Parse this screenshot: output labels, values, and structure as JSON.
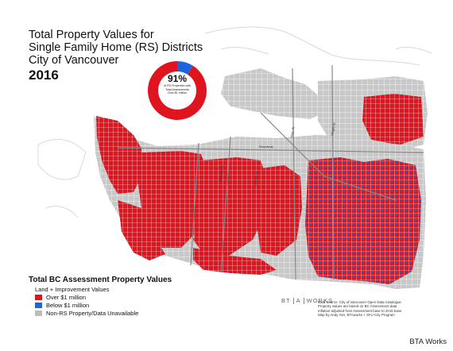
{
  "title": {
    "line1": "Total Property Values for",
    "line2": "Single Family Home (RS) Districts",
    "line3": "City of Vancouver",
    "year": "2016"
  },
  "donut": {
    "percent_label": "91%",
    "caption_line1": "of RS Properties with",
    "caption_line2": "Total Assessments",
    "caption_line3": "Over $1 million",
    "over_share": 0.91,
    "below_share": 0.09
  },
  "legend": {
    "title": "Total BC Assessment Property Values",
    "subtitle": "Land + Improvement Values",
    "items": [
      {
        "label": "Over $1 million",
        "color": "#e0141e"
      },
      {
        "label": "Below $1 million",
        "color": "#1e64dc"
      },
      {
        "label": "Non-RS Property/Data Unavailable",
        "color": "#bdbdbd"
      }
    ]
  },
  "streets": {
    "broadway": "Broadway",
    "main": "Main St",
    "knight": "Knight St",
    "granville": "Granville St",
    "cambie": "Cambie St"
  },
  "logo": {
    "part1": "BT",
    "part2": "A",
    "part3": "WORKS"
  },
  "source": {
    "line1": "Data Source: City of Vancouver Open Data Catalogue",
    "line2": "Property values are based on BC Assessment data",
    "line3": "Inflation adjusted from Assessment base to 2016 base",
    "line4": "Map by Andy Yan, BTAworks + SFU City Program"
  },
  "credit": "BTA Works",
  "colors": {
    "over": "#e0141e",
    "below": "#1e64dc",
    "nonrs": "#bdbdbd",
    "water": "#ffffff",
    "grid": "#ffffff"
  }
}
